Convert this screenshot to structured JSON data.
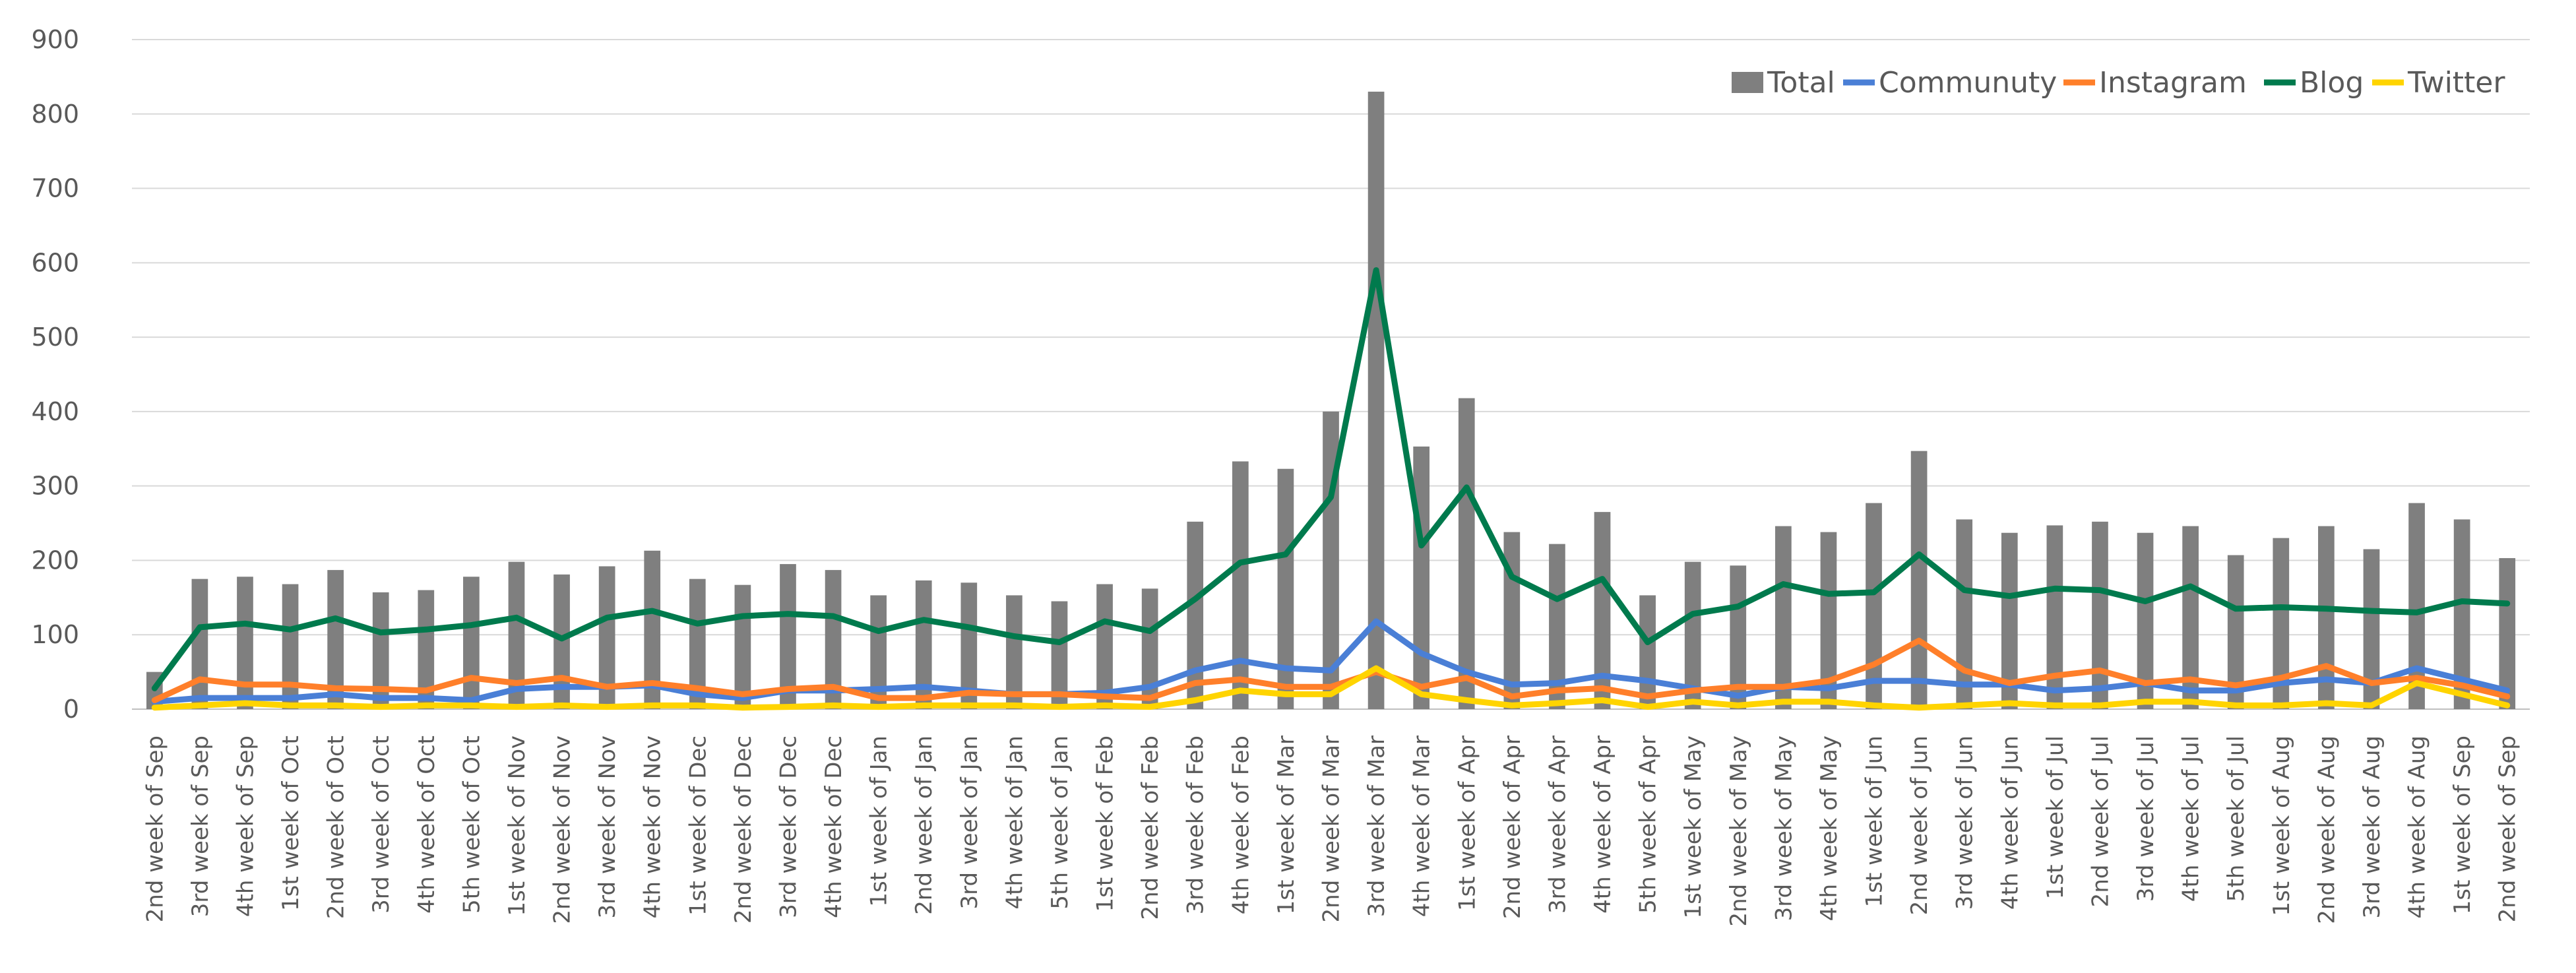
{
  "chart_data": {
    "type": "bar+line",
    "ylim": [
      0,
      900
    ],
    "yticks": [
      "0",
      "100",
      "200",
      "300",
      "400",
      "500",
      "600",
      "700",
      "800",
      "900"
    ],
    "categories": [
      "2nd week of Sep",
      "3rd week of Sep",
      "4th week of Sep",
      "1st week of Oct",
      "2nd week of Oct",
      "3rd week of Oct",
      "4th week of Oct",
      "5th week of Oct",
      "1st week of Nov",
      "2nd week of Nov",
      "3rd week of Nov",
      "4th week of Nov",
      "1st week of Dec",
      "2nd week of Dec",
      "3rd week of Dec",
      "4th week of Dec",
      "1st week of Jan",
      "2nd week of Jan",
      "3rd week of Jan",
      "4th week of Jan",
      "5th week of Jan",
      "1st week of Feb",
      "2nd week of Feb",
      "3rd week of Feb",
      "4th week of Feb",
      "1st week of Mar",
      "2nd week of Mar",
      "3rd week of Mar",
      "4th week of Mar",
      "1st week of Apr",
      "2nd week of Apr",
      "3rd week of Apr",
      "4th week of Apr",
      "5th week of Apr",
      "1st week of May",
      "2nd week of May",
      "3rd week of May",
      "4th week of May",
      "1st week of Jun",
      "2nd week of Jun",
      "3rd week of Jun",
      "4th week of Jun",
      "1st week of Jul",
      "2nd week of Jul",
      "3rd week of Jul",
      "4th week of Jul",
      "5th week of Jul",
      "1st week of Aug",
      "2nd week of Aug",
      "3rd week of Aug",
      "4th week of Aug",
      "1st week of Sep",
      "2nd week of Sep"
    ],
    "series": [
      {
        "name": "Total",
        "kind": "bar",
        "color": "#7f7f7f",
        "values": [
          50,
          175,
          178,
          168,
          187,
          157,
          160,
          178,
          198,
          181,
          192,
          213,
          175,
          167,
          195,
          187,
          153,
          173,
          170,
          153,
          145,
          168,
          162,
          252,
          333,
          323,
          400,
          830,
          353,
          418,
          238,
          222,
          265,
          153,
          198,
          193,
          246,
          238,
          277,
          347,
          255,
          237,
          247,
          252,
          237,
          246,
          207,
          230,
          246,
          215,
          277,
          255,
          203
        ]
      },
      {
        "name": "Communuty",
        "kind": "line",
        "color": "#4a7fd6",
        "values": [
          10,
          15,
          15,
          15,
          20,
          15,
          15,
          12,
          27,
          30,
          30,
          32,
          20,
          15,
          25,
          25,
          27,
          30,
          25,
          20,
          20,
          22,
          30,
          52,
          65,
          55,
          52,
          118,
          75,
          50,
          33,
          35,
          45,
          38,
          28,
          18,
          30,
          28,
          38,
          38,
          33,
          33,
          25,
          28,
          35,
          25,
          25,
          35,
          40,
          35,
          55,
          40,
          25
        ]
      },
      {
        "name": "Instagram",
        "kind": "line",
        "color": "#ff7f2a",
        "values": [
          12,
          40,
          33,
          33,
          28,
          27,
          25,
          42,
          35,
          42,
          30,
          35,
          28,
          20,
          27,
          30,
          15,
          15,
          22,
          20,
          20,
          17,
          15,
          35,
          40,
          30,
          30,
          50,
          30,
          42,
          17,
          25,
          28,
          17,
          25,
          30,
          30,
          38,
          60,
          92,
          52,
          35,
          45,
          52,
          35,
          40,
          32,
          42,
          58,
          35,
          42,
          32,
          17
        ]
      },
      {
        "name": "Blog",
        "kind": "line",
        "color": "#007a4d",
        "values": [
          28,
          110,
          115,
          107,
          122,
          103,
          107,
          113,
          123,
          95,
          123,
          132,
          115,
          125,
          128,
          125,
          105,
          120,
          110,
          98,
          90,
          118,
          105,
          148,
          197,
          208,
          285,
          590,
          220,
          298,
          178,
          148,
          175,
          90,
          128,
          138,
          168,
          155,
          157,
          208,
          160,
          152,
          162,
          160,
          145,
          165,
          135,
          137,
          135,
          132,
          130,
          145,
          142
        ]
      },
      {
        "name": "Twitter",
        "kind": "line",
        "color": "#ffd400",
        "values": [
          2,
          5,
          8,
          5,
          5,
          3,
          5,
          5,
          3,
          5,
          3,
          5,
          5,
          2,
          3,
          5,
          3,
          5,
          5,
          5,
          3,
          5,
          3,
          12,
          25,
          20,
          20,
          55,
          20,
          12,
          5,
          8,
          12,
          3,
          10,
          5,
          10,
          10,
          5,
          2,
          5,
          8,
          5,
          5,
          10,
          10,
          5,
          5,
          8,
          5,
          35,
          20,
          5
        ]
      }
    ],
    "legend": {
      "position": "top-right",
      "entries": [
        "Total",
        "Communuty",
        "Instagram",
        "Blog",
        "Twitter"
      ]
    },
    "title": "",
    "xlabel": "",
    "ylabel": ""
  }
}
